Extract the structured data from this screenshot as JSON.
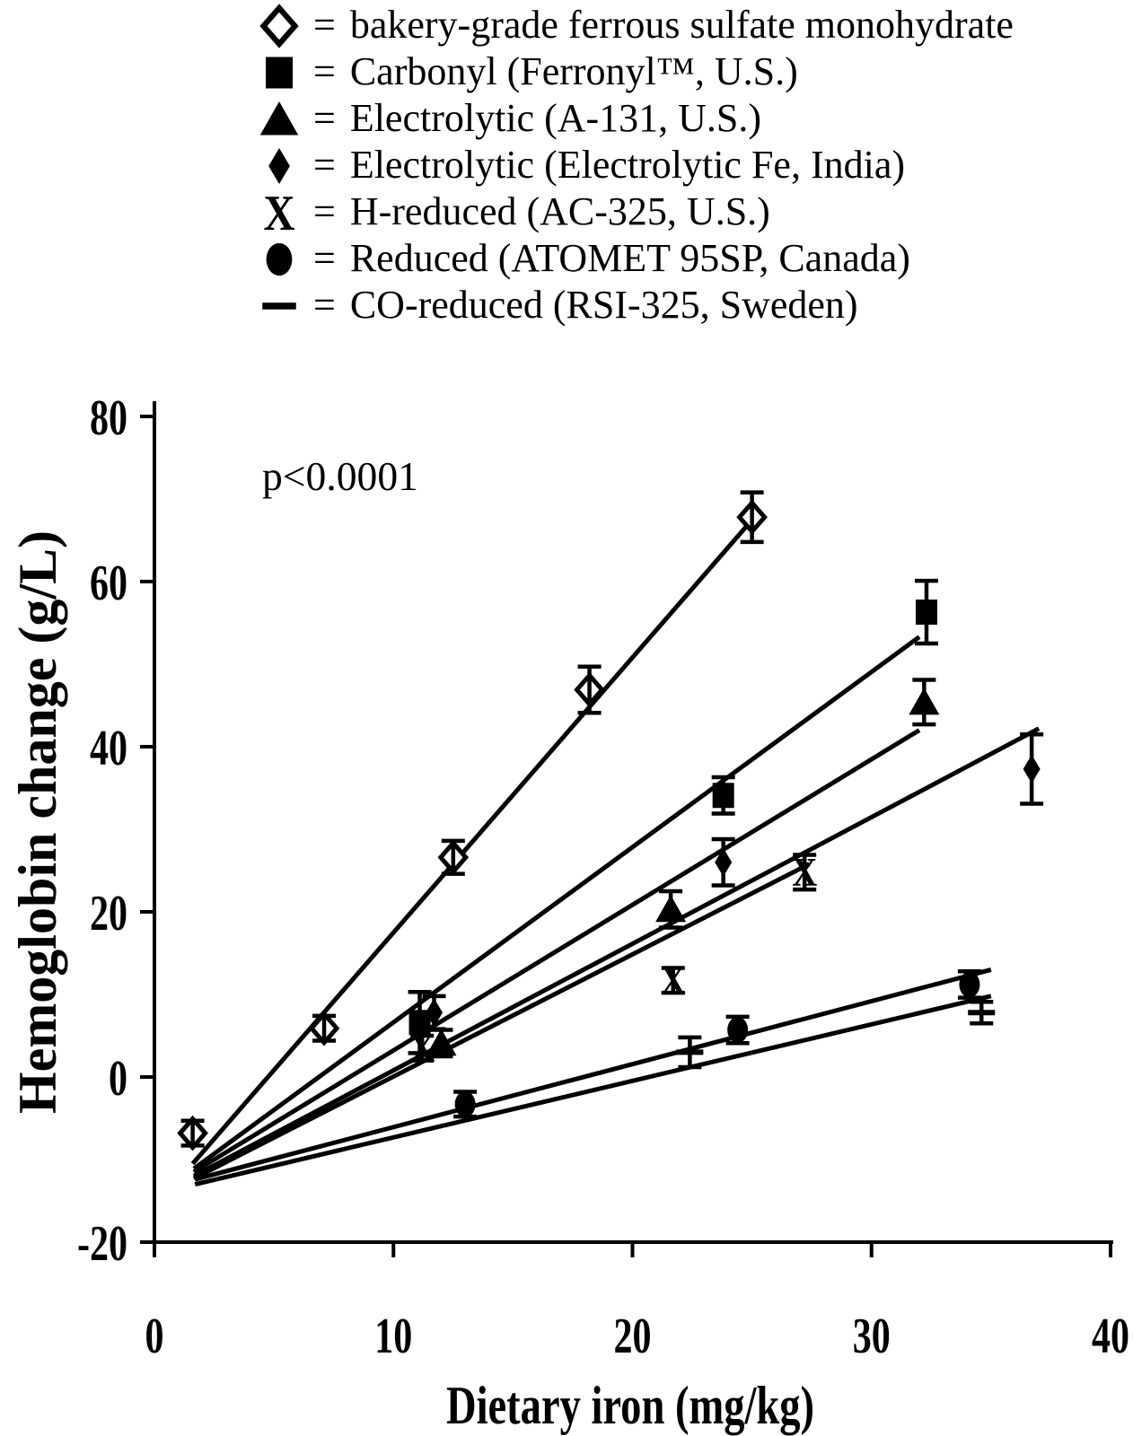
{
  "colors": {
    "foreground": "#000000",
    "background": "#ffffff"
  },
  "legend": {
    "equals": "="
  },
  "chart_data": {
    "type": "scatter",
    "title": "",
    "xlabel": "Dietary iron (mg/kg)",
    "ylabel": "Hemoglobin change (g/L)",
    "annotation": "p<0.0001",
    "xlim": [
      0,
      40
    ],
    "ylim": [
      -20,
      80
    ],
    "x_ticks": [
      0,
      10,
      20,
      30,
      40
    ],
    "y_ticks": [
      80,
      60,
      40,
      20,
      0,
      -20
    ],
    "grid": false,
    "legend_position": "top",
    "series": [
      {
        "name": "bakery-grade ferrous sulfate monohydrate",
        "marker": "open-diamond",
        "points": [
          {
            "x": 1.6,
            "y": -6.8,
            "err": 1.5
          },
          {
            "x": 7.1,
            "y": 5.9,
            "err": 1.5
          },
          {
            "x": 12.5,
            "y": 26.6,
            "err": 2.0
          },
          {
            "x": 18.2,
            "y": 46.9,
            "err": 2.8
          },
          {
            "x": 25.0,
            "y": 67.8,
            "err": 3.0
          }
        ],
        "trendline": {
          "x1": 1.6,
          "y1": -10.5,
          "x2": 24.8,
          "y2": 66.8
        }
      },
      {
        "name": "Carbonyl (Ferronyl™, U.S.)",
        "marker": "filled-square",
        "points": [
          {
            "x": 11.1,
            "y": 6.6,
            "err": 3.7
          },
          {
            "x": 23.8,
            "y": 34.1,
            "err": 2.2
          },
          {
            "x": 32.3,
            "y": 56.3,
            "err": 3.8
          }
        ],
        "trendline": {
          "x1": 1.65,
          "y1": -11.1,
          "x2": 32.0,
          "y2": 53.3
        }
      },
      {
        "name": "Electrolytic (A-131, U.S.)",
        "marker": "filled-triangle",
        "points": [
          {
            "x": 12.0,
            "y": 4.1,
            "err": 1.6
          },
          {
            "x": 21.6,
            "y": 20.3,
            "err": 2.2
          },
          {
            "x": 32.2,
            "y": 45.4,
            "err": 2.7
          }
        ],
        "trendline": {
          "x1": 1.65,
          "y1": -11.5,
          "x2": 32.0,
          "y2": 42.0
        }
      },
      {
        "name": "Electrolytic (Electrolytic Fe, India)",
        "marker": "filled-diamond",
        "points": [
          {
            "x": 11.7,
            "y": 7.8,
            "err": 2.0
          },
          {
            "x": 23.8,
            "y": 26.0,
            "err": 2.8
          },
          {
            "x": 36.7,
            "y": 37.3,
            "err": 4.2
          }
        ],
        "trendline": {
          "x1": 1.65,
          "y1": -12.0,
          "x2": 37.0,
          "y2": 42.2
        }
      },
      {
        "name": "H-reduced (AC-325, U.S.)",
        "marker": "x",
        "points": [
          {
            "x": 11.2,
            "y": 3.5,
            "err": 1.5
          },
          {
            "x": 21.7,
            "y": 11.7,
            "err": 1.5
          },
          {
            "x": 27.2,
            "y": 24.8,
            "err": 2.1
          }
        ],
        "trendline": {
          "x1": 1.65,
          "y1": -12.3,
          "x2": 27.4,
          "y2": 25.8
        }
      },
      {
        "name": "Reduced (ATOMET 95SP, Canada)",
        "marker": "filled-circle",
        "points": [
          {
            "x": 13.0,
            "y": -3.3,
            "err": 1.5
          },
          {
            "x": 24.4,
            "y": 5.7,
            "err": 1.6
          },
          {
            "x": 34.1,
            "y": 11.2,
            "err": 1.6
          }
        ],
        "trendline": {
          "x1": 1.7,
          "y1": -12.4,
          "x2": 35.0,
          "y2": 13.0
        }
      },
      {
        "name": "CO-reduced (RSI-325, Sweden)",
        "marker": "dash",
        "points": [
          {
            "x": 22.4,
            "y": 3.0,
            "err": 1.8
          },
          {
            "x": 34.6,
            "y": 7.8,
            "err": 1.3
          }
        ],
        "trendline": {
          "x1": 1.7,
          "y1": -13.0,
          "x2": 35.0,
          "y2": 9.8
        }
      }
    ]
  }
}
